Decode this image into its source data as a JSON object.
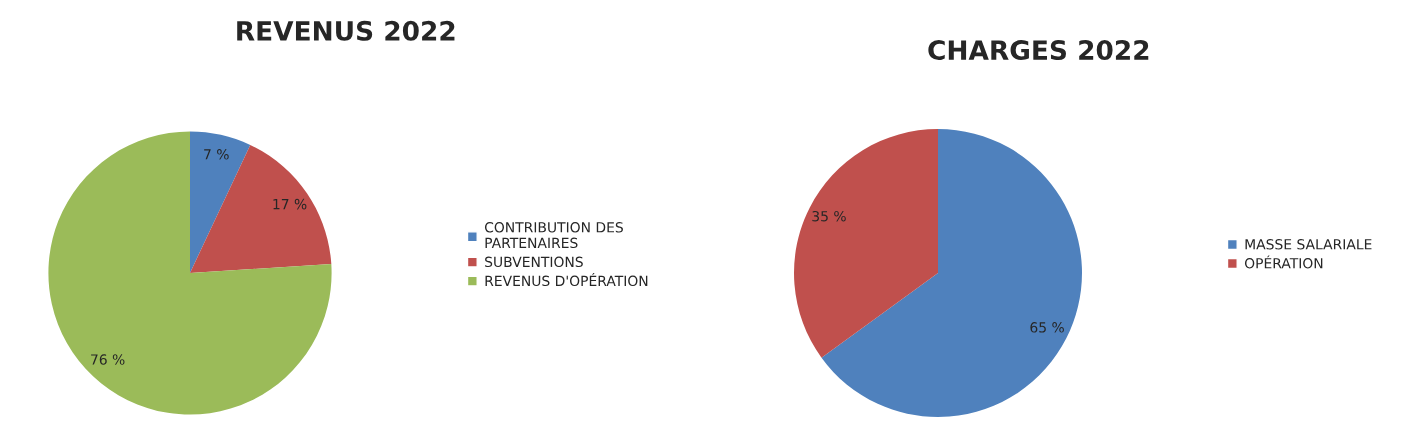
{
  "chart_data": [
    {
      "type": "pie",
      "title": "REVENUS 2022",
      "categories": [
        "CONTRIBUTION DES\nPARTENAIRES",
        "SUBVENTIONS",
        "REVENUS D'OPÉRATION"
      ],
      "values": [
        7,
        17,
        76
      ],
      "colors": [
        "#4f81bd",
        "#c0504d",
        "#9bbb59"
      ],
      "value_labels": [
        "7 %",
        "17 %",
        "76 %"
      ],
      "legend": "right"
    },
    {
      "type": "pie",
      "title": "CHARGES 2022",
      "categories": [
        "MASSE SALARIALE",
        "OPÉRATION"
      ],
      "values": [
        65,
        35
      ],
      "colors": [
        "#4f81bd",
        "#c0504d"
      ],
      "value_labels": [
        "65 %",
        "35 %"
      ],
      "legend": "right"
    }
  ]
}
